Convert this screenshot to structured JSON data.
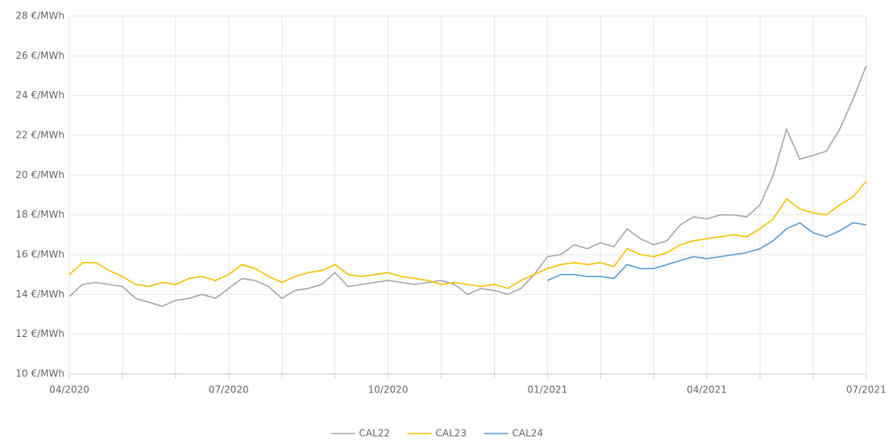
{
  "chart_data": {
    "type": "line",
    "categories": [
      "04/2020",
      null,
      null,
      null,
      null,
      null,
      null,
      null,
      null,
      null,
      null,
      null,
      "07/2020",
      null,
      null,
      null,
      null,
      null,
      null,
      null,
      null,
      null,
      null,
      null,
      "10/2020",
      null,
      null,
      null,
      null,
      null,
      null,
      null,
      null,
      null,
      null,
      null,
      "01/2021",
      null,
      null,
      null,
      null,
      null,
      null,
      null,
      null,
      null,
      null,
      null,
      "04/2021",
      null,
      null,
      null,
      null,
      null,
      null,
      null,
      null,
      null,
      null,
      null,
      "07/2021"
    ],
    "series": [
      {
        "name": "CAL22",
        "color": "#a6a6a6",
        "values": [
          13.9,
          14.5,
          14.6,
          14.5,
          14.4,
          13.8,
          13.6,
          13.4,
          13.7,
          13.8,
          14.0,
          13.8,
          14.3,
          14.8,
          14.7,
          14.4,
          13.8,
          14.2,
          14.3,
          14.5,
          15.1,
          14.4,
          14.5,
          14.6,
          14.7,
          14.6,
          14.5,
          14.6,
          14.7,
          14.5,
          14.0,
          14.3,
          14.2,
          14.0,
          14.3,
          15.0,
          15.9,
          16.0,
          16.5,
          16.3,
          16.6,
          16.4,
          17.3,
          16.8,
          16.5,
          16.7,
          17.5,
          17.9,
          17.8,
          18.0,
          18.0,
          17.9,
          18.5,
          20.0,
          22.3,
          20.8,
          21.0,
          21.2,
          22.3,
          23.8,
          25.5
        ]
      },
      {
        "name": "CAL23",
        "color": "#f5c000",
        "values": [
          15.0,
          15.6,
          15.6,
          15.2,
          14.9,
          14.5,
          14.4,
          14.6,
          14.5,
          14.8,
          14.9,
          14.7,
          15.0,
          15.5,
          15.3,
          14.9,
          14.6,
          14.9,
          15.1,
          15.2,
          15.5,
          15.0,
          14.9,
          15.0,
          15.1,
          14.9,
          14.8,
          14.7,
          14.5,
          14.6,
          14.5,
          14.4,
          14.5,
          14.3,
          14.7,
          15.0,
          15.3,
          15.5,
          15.6,
          15.5,
          15.6,
          15.4,
          16.3,
          16.0,
          15.9,
          16.1,
          16.5,
          16.7,
          16.8,
          16.9,
          17.0,
          16.9,
          17.3,
          17.8,
          18.8,
          18.3,
          18.1,
          18.0,
          18.5,
          18.9,
          19.7
        ]
      },
      {
        "name": "CAL24",
        "color": "#5b9bd5",
        "values": [
          null,
          null,
          null,
          null,
          null,
          null,
          null,
          null,
          null,
          null,
          null,
          null,
          null,
          null,
          null,
          null,
          null,
          null,
          null,
          null,
          null,
          null,
          null,
          null,
          null,
          null,
          null,
          null,
          null,
          null,
          null,
          null,
          null,
          null,
          null,
          null,
          14.7,
          15.0,
          15.0,
          14.9,
          14.9,
          14.8,
          15.5,
          15.3,
          15.3,
          15.5,
          15.7,
          15.9,
          15.8,
          15.9,
          16.0,
          16.1,
          16.3,
          16.7,
          17.3,
          17.6,
          17.1,
          16.9,
          17.2,
          17.6,
          17.5
        ]
      }
    ],
    "ylim": [
      10,
      28
    ],
    "yticks": [
      {
        "value": 10,
        "label": "10 €/MWh"
      },
      {
        "value": 12,
        "label": "12 €/MWh"
      },
      {
        "value": 14,
        "label": "14 €/MWh"
      },
      {
        "value": 16,
        "label": "16 €/MWh"
      },
      {
        "value": 18,
        "label": "18 €/MWh"
      },
      {
        "value": 20,
        "label": "20 €/MWh"
      },
      {
        "value": 22,
        "label": "22 €/MWh"
      },
      {
        "value": 24,
        "label": "24 €/MWh"
      },
      {
        "value": 26,
        "label": "26 €/MWh"
      },
      {
        "value": 28,
        "label": "28 €/MWh"
      }
    ],
    "grid": true,
    "legend": "bottom"
  }
}
